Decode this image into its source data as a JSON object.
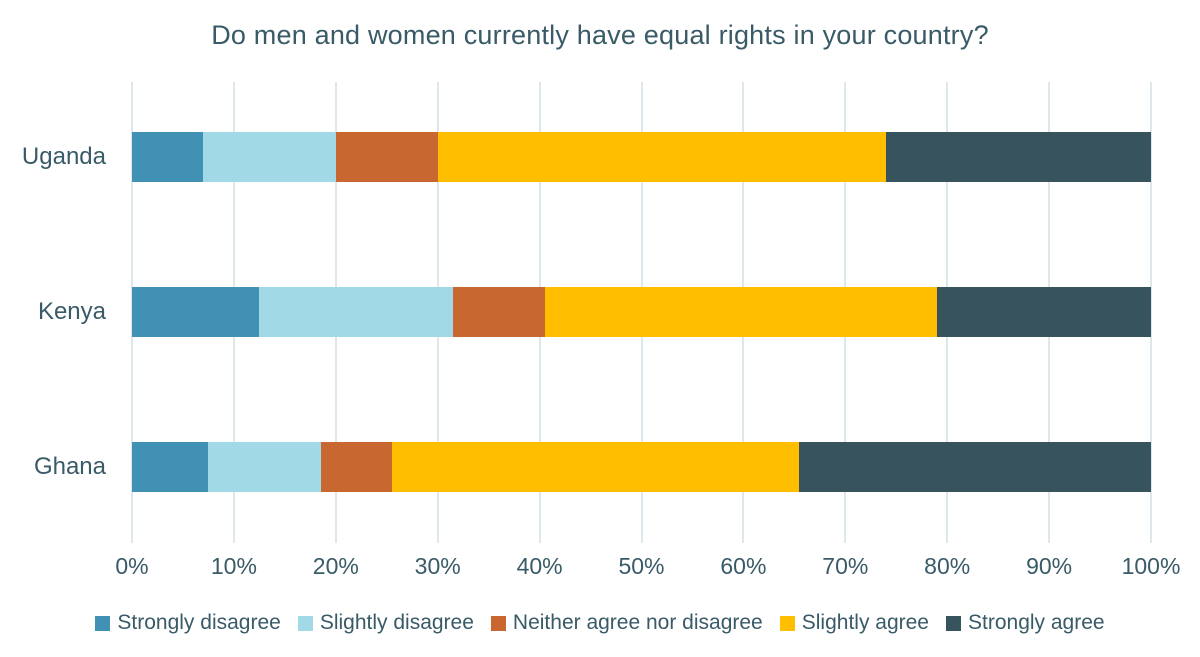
{
  "chart_data": {
    "type": "bar",
    "orientation": "horizontal",
    "stacked": true,
    "title": "Do men and women currently have equal rights in your country?",
    "categories": [
      "Uganda",
      "Kenya",
      "Ghana"
    ],
    "series": [
      {
        "name": "Strongly disagree",
        "color": "#4191B5",
        "values": [
          7,
          12.5,
          7.5
        ]
      },
      {
        "name": "Slightly disagree",
        "color": "#A2D9E6",
        "values": [
          13,
          19,
          11
        ]
      },
      {
        "name": "Neither agree nor disagree",
        "color": "#C8672F",
        "values": [
          10,
          9,
          7
        ]
      },
      {
        "name": "Slightly agree",
        "color": "#FFBE00",
        "values": [
          44,
          38.5,
          40
        ]
      },
      {
        "name": "Strongly agree",
        "color": "#36535E",
        "values": [
          26,
          21,
          34.5
        ]
      }
    ],
    "x_axis": {
      "min": 0,
      "max": 100,
      "tick_step": 10,
      "ticks": [
        "0%",
        "10%",
        "20%",
        "30%",
        "40%",
        "50%",
        "60%",
        "70%",
        "80%",
        "90%",
        "100%"
      ]
    },
    "legend_position": "bottom",
    "grid": true,
    "colors": {
      "text": "#395A67",
      "gridline": "#DEE8EC",
      "background": "#FFFFFF"
    }
  }
}
